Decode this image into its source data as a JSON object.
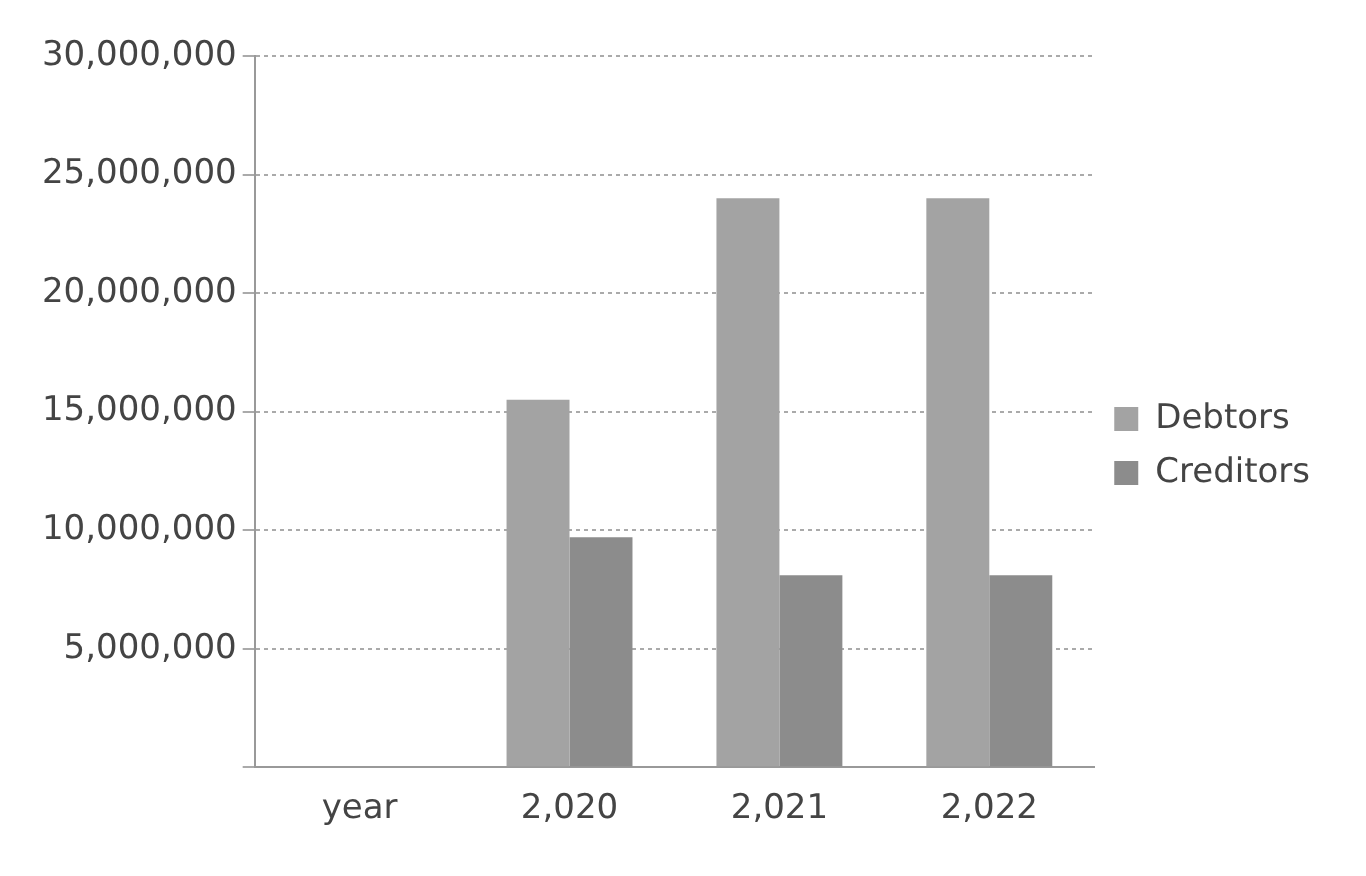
{
  "chart_data": {
    "type": "bar",
    "categories": [
      "year",
      "2,020",
      "2,021",
      "2,022"
    ],
    "series": [
      {
        "name": "Debtors",
        "color": "#a3a3a3",
        "values": [
          null,
          15500000,
          24000000,
          24000000
        ]
      },
      {
        "name": "Creditors",
        "color": "#8c8c8c",
        "values": [
          null,
          9700000,
          8100000,
          8100000
        ]
      }
    ],
    "ylim": [
      0,
      30000000
    ],
    "yticks": [
      {
        "value": 0,
        "label": null
      },
      {
        "value": 5000000,
        "label": "5,000,000"
      },
      {
        "value": 10000000,
        "label": "10,000,000"
      },
      {
        "value": 15000000,
        "label": "15,000,000"
      },
      {
        "value": 20000000,
        "label": "20,000,000"
      },
      {
        "value": 25000000,
        "label": "25,000,000"
      },
      {
        "value": 30000000,
        "label": "30,000,000"
      }
    ],
    "grid": "y",
    "legend": "right"
  }
}
